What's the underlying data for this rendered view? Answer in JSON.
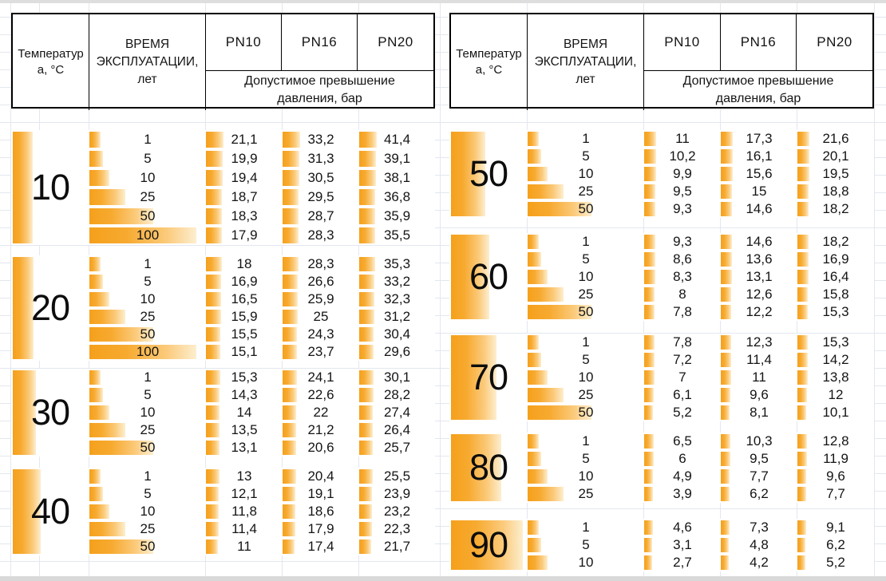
{
  "header": {
    "temperature": "Температура, °С",
    "time": "ВРЕМЯ ЭКСПЛУАТАЦИИ, лет",
    "pn": [
      "PN10",
      "PN16",
      "PN20"
    ],
    "allowed": "Допустимое превышение давления, бар"
  },
  "colors": {
    "bar_orange": "#f5a01c",
    "bar_fade": "#fdeecf",
    "grid_line": "#e3e7ee",
    "border": "#000000"
  },
  "tables": {
    "left": {
      "blocks": [
        {
          "temperature": "10",
          "rows": [
            {
              "years": "1",
              "pn": [
                "21,1",
                "33,2",
                "41,4"
              ]
            },
            {
              "years": "5",
              "pn": [
                "19,9",
                "31,3",
                "39,1"
              ]
            },
            {
              "years": "10",
              "pn": [
                "19,4",
                "30,5",
                "38,1"
              ]
            },
            {
              "years": "25",
              "pn": [
                "18,7",
                "29,5",
                "36,8"
              ]
            },
            {
              "years": "50",
              "pn": [
                "18,3",
                "28,7",
                "35,9"
              ]
            },
            {
              "years": "100",
              "pn": [
                "17,9",
                "28,3",
                "35,5"
              ]
            }
          ]
        },
        {
          "temperature": "20",
          "rows": [
            {
              "years": "1",
              "pn": [
                "18",
                "28,3",
                "35,3"
              ]
            },
            {
              "years": "5",
              "pn": [
                "16,9",
                "26,6",
                "33,2"
              ]
            },
            {
              "years": "10",
              "pn": [
                "16,5",
                "25,9",
                "32,3"
              ]
            },
            {
              "years": "25",
              "pn": [
                "15,9",
                "25",
                "31,2"
              ]
            },
            {
              "years": "50",
              "pn": [
                "15,5",
                "24,3",
                "30,4"
              ]
            },
            {
              "years": "100",
              "pn": [
                "15,1",
                "23,7",
                "29,6"
              ]
            }
          ]
        },
        {
          "temperature": "30",
          "rows": [
            {
              "years": "1",
              "pn": [
                "15,3",
                "24,1",
                "30,1"
              ]
            },
            {
              "years": "5",
              "pn": [
                "14,3",
                "22,6",
                "28,2"
              ]
            },
            {
              "years": "10",
              "pn": [
                "14",
                "22",
                "27,4"
              ]
            },
            {
              "years": "25",
              "pn": [
                "13,5",
                "21,2",
                "26,4"
              ]
            },
            {
              "years": "50",
              "pn": [
                "13,1",
                "20,6",
                "25,7"
              ]
            }
          ]
        },
        {
          "temperature": "40",
          "rows": [
            {
              "years": "1",
              "pn": [
                "13",
                "20,4",
                "25,5"
              ]
            },
            {
              "years": "5",
              "pn": [
                "12,1",
                "19,1",
                "23,9"
              ]
            },
            {
              "years": "10",
              "pn": [
                "11,8",
                "18,6",
                "23,2"
              ]
            },
            {
              "years": "25",
              "pn": [
                "11,4",
                "17,9",
                "22,3"
              ]
            },
            {
              "years": "50",
              "pn": [
                "11",
                "17,4",
                "21,7"
              ]
            }
          ]
        }
      ]
    },
    "right": {
      "blocks": [
        {
          "temperature": "50",
          "rows": [
            {
              "years": "1",
              "pn": [
                "11",
                "17,3",
                "21,6"
              ]
            },
            {
              "years": "5",
              "pn": [
                "10,2",
                "16,1",
                "20,1"
              ]
            },
            {
              "years": "10",
              "pn": [
                "9,9",
                "15,6",
                "19,5"
              ]
            },
            {
              "years": "25",
              "pn": [
                "9,5",
                "15",
                "18,8"
              ]
            },
            {
              "years": "50",
              "pn": [
                "9,3",
                "14,6",
                "18,2"
              ]
            }
          ]
        },
        {
          "temperature": "60",
          "rows": [
            {
              "years": "1",
              "pn": [
                "9,3",
                "14,6",
                "18,2"
              ]
            },
            {
              "years": "5",
              "pn": [
                "8,6",
                "13,6",
                "16,9"
              ]
            },
            {
              "years": "10",
              "pn": [
                "8,3",
                "13,1",
                "16,4"
              ]
            },
            {
              "years": "25",
              "pn": [
                "8",
                "12,6",
                "15,8"
              ]
            },
            {
              "years": "50",
              "pn": [
                "7,8",
                "12,2",
                "15,3"
              ]
            }
          ]
        },
        {
          "temperature": "70",
          "rows": [
            {
              "years": "1",
              "pn": [
                "7,8",
                "12,3",
                "15,3"
              ]
            },
            {
              "years": "5",
              "pn": [
                "7,2",
                "11,4",
                "14,2"
              ]
            },
            {
              "years": "10",
              "pn": [
                "7",
                "11",
                "13,8"
              ]
            },
            {
              "years": "25",
              "pn": [
                "6,1",
                "9,6",
                "12"
              ]
            },
            {
              "years": "50",
              "pn": [
                "5,2",
                "8,1",
                "10,1"
              ]
            }
          ]
        },
        {
          "temperature": "80",
          "rows": [
            {
              "years": "1",
              "pn": [
                "6,5",
                "10,3",
                "12,8"
              ]
            },
            {
              "years": "5",
              "pn": [
                "6",
                "9,5",
                "11,9"
              ]
            },
            {
              "years": "10",
              "pn": [
                "4,9",
                "7,7",
                "9,6"
              ]
            },
            {
              "years": "25",
              "pn": [
                "3,9",
                "6,2",
                "7,7"
              ]
            }
          ]
        },
        {
          "temperature": "90",
          "rows": [
            {
              "years": "1",
              "pn": [
                "4,6",
                "7,3",
                "9,1"
              ]
            },
            {
              "years": "5",
              "pn": [
                "3,1",
                "4,8",
                "6,2"
              ]
            },
            {
              "years": "10",
              "pn": [
                "2,7",
                "4,2",
                "5,2"
              ]
            }
          ]
        }
      ]
    }
  }
}
